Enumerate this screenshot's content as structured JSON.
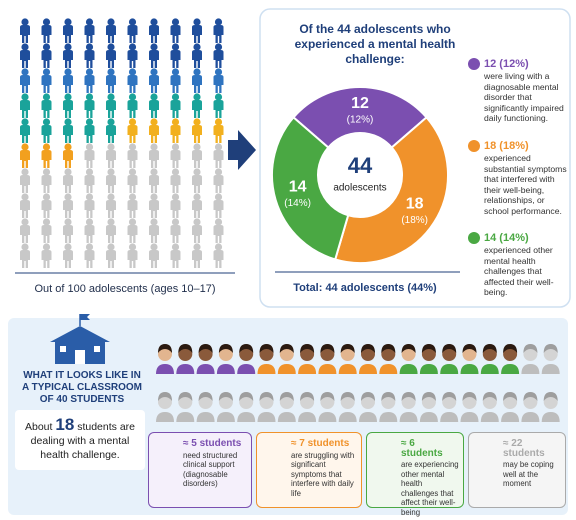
{
  "left": {
    "caption": "Out of 100 adolescents (ages 10–17)"
  },
  "chart_data": {
    "type": "pie",
    "title": "Of the 44 adolescents who experienced a mental health challenge:",
    "center_value": 44,
    "center_label": "adolescents",
    "categories": [
      "12 (12%)",
      "18 (18%)",
      "14 (14%)"
    ],
    "descriptions": [
      "were living with a diagnosable mental disorder that significantly impaired daily functioning.",
      "experienced substantial symptoms that interfered with their well-being, relationships, or school performance.",
      "experienced other mental health challenges that affected their well-being."
    ],
    "values": [
      12,
      18,
      14
    ],
    "value_labels": [
      "(12%)",
      "(18%)",
      "(14%)"
    ],
    "colors": [
      "#7b4fb0",
      "#f0922b",
      "#4aa843"
    ],
    "total": "Total: 44 adolescents (44%)"
  },
  "classroom": {
    "heading": "WHAT IT LOOKS LIKE IN A TYPICAL CLASSROOM OF 40 STUDENTS",
    "about": "About",
    "count": 18,
    "about_rest": "students are dealing with a mental health challenge.",
    "cards": [
      {
        "count": "≈ 5 students",
        "text": "need structured clinical support",
        "note": "(diagnosable disorders)"
      },
      {
        "count": "≈ 7 students",
        "text": "are struggling with significant symptoms that interfere with daily life"
      },
      {
        "count": "≈ 6 students",
        "text": "are experiencing other mental health challenges that affect their well-being"
      },
      {
        "count": "≈ 22 students",
        "text": "may be coping well at the moment"
      }
    ]
  }
}
